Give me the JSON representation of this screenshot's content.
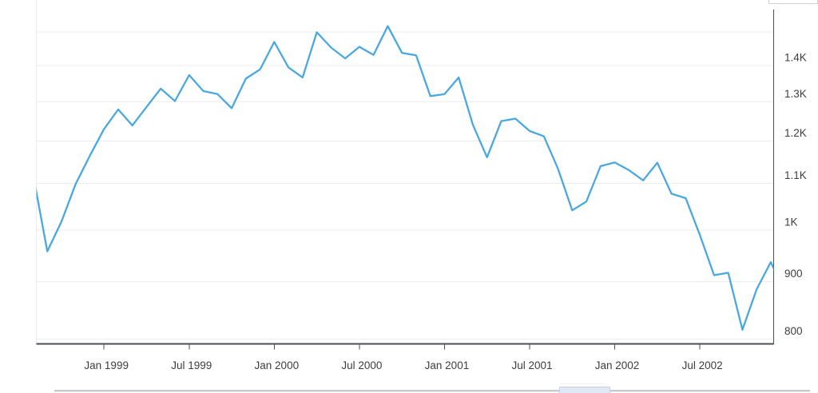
{
  "page": {
    "background": "#ffffff"
  },
  "chart_data": {
    "type": "line",
    "title": "",
    "legend_position": "none",
    "grid": true,
    "y_scale": "log",
    "y_axis_side": "right",
    "x_range_visible": [
      "Aug 1998",
      "Dec 2002"
    ],
    "line_color": "#4aa8e0",
    "axis_color": "#4c4f52",
    "grid_color": "#ededee",
    "label_color": "#3d3d3d",
    "x_tick_labels": [
      "Jan 1999",
      "Jul 1999",
      "Jan 2000",
      "Jul 2000",
      "Jan 2001",
      "Jul 2001",
      "Jan 2002",
      "Jul 2002"
    ],
    "y_tick_labels": [
      {
        "label": "1.4K",
        "value": 1400
      },
      {
        "label": "1.3K",
        "value": 1300
      },
      {
        "label": "1.2K",
        "value": 1200
      },
      {
        "label": "1.1K",
        "value": 1100
      },
      {
        "label": "1K",
        "value": 1000
      },
      {
        "label": "900",
        "value": 900
      },
      {
        "label": "800",
        "value": 800
      }
    ],
    "y_grid_values": [
      1500,
      1400,
      1300,
      1200,
      1100,
      1000,
      900,
      800
    ],
    "series": [
      {
        "name": "",
        "color": "#4aa8e0",
        "points": [
          {
            "date": "Jul 1998",
            "value": 1120.67
          },
          {
            "date": "Aug 1998",
            "value": 957.28
          },
          {
            "date": "Sep 1998",
            "value": 1017.01
          },
          {
            "date": "Oct 1998",
            "value": 1098.67
          },
          {
            "date": "Nov 1998",
            "value": 1163.63
          },
          {
            "date": "Dec 1998",
            "value": 1229.23
          },
          {
            "date": "Jan 1999",
            "value": 1279.64
          },
          {
            "date": "Feb 1999",
            "value": 1238.33
          },
          {
            "date": "Mar 1999",
            "value": 1286.37
          },
          {
            "date": "Apr 1999",
            "value": 1335.18
          },
          {
            "date": "May 1999",
            "value": 1301.84
          },
          {
            "date": "Jun 1999",
            "value": 1372.71
          },
          {
            "date": "Jul 1999",
            "value": 1328.72
          },
          {
            "date": "Aug 1999",
            "value": 1320.41
          },
          {
            "date": "Sep 1999",
            "value": 1282.71
          },
          {
            "date": "Oct 1999",
            "value": 1362.93
          },
          {
            "date": "Nov 1999",
            "value": 1388.91
          },
          {
            "date": "Dec 1999",
            "value": 1469.25
          },
          {
            "date": "Jan 2000",
            "value": 1394.46
          },
          {
            "date": "Feb 2000",
            "value": 1366.42
          },
          {
            "date": "Mar 2000",
            "value": 1498.58
          },
          {
            "date": "Apr 2000",
            "value": 1452.43
          },
          {
            "date": "May 2000",
            "value": 1420.6
          },
          {
            "date": "Jun 2000",
            "value": 1454.6
          },
          {
            "date": "Jul 2000",
            "value": 1430.83
          },
          {
            "date": "Aug 2000",
            "value": 1517.68
          },
          {
            "date": "Sep 2000",
            "value": 1436.51
          },
          {
            "date": "Oct 2000",
            "value": 1429.4
          },
          {
            "date": "Nov 2000",
            "value": 1314.95
          },
          {
            "date": "Dec 2000",
            "value": 1320.28
          },
          {
            "date": "Jan 2001",
            "value": 1366.01
          },
          {
            "date": "Feb 2001",
            "value": 1239.94
          },
          {
            "date": "Mar 2001",
            "value": 1160.33
          },
          {
            "date": "Apr 2001",
            "value": 1249.46
          },
          {
            "date": "May 2001",
            "value": 1255.82
          },
          {
            "date": "Jun 2001",
            "value": 1224.38
          },
          {
            "date": "Jul 2001",
            "value": 1211.23
          },
          {
            "date": "Aug 2001",
            "value": 1133.58
          },
          {
            "date": "Sep 2001",
            "value": 1040.94
          },
          {
            "date": "Oct 2001",
            "value": 1059.78
          },
          {
            "date": "Nov 2001",
            "value": 1139.45
          },
          {
            "date": "Dec 2001",
            "value": 1148.08
          },
          {
            "date": "Jan 2002",
            "value": 1130.2
          },
          {
            "date": "Feb 2002",
            "value": 1106.73
          },
          {
            "date": "Mar 2002",
            "value": 1147.39
          },
          {
            "date": "Apr 2002",
            "value": 1076.92
          },
          {
            "date": "May 2002",
            "value": 1067.14
          },
          {
            "date": "Jun 2002",
            "value": 989.82
          },
          {
            "date": "Jul 2002",
            "value": 911.62
          },
          {
            "date": "Aug 2002",
            "value": 916.07
          },
          {
            "date": "Sep 2002",
            "value": 815.28
          },
          {
            "date": "Oct 2002",
            "value": 885.76
          },
          {
            "date": "Nov 2002",
            "value": 936.31
          },
          {
            "date": "Dec 2002",
            "value": 879.82
          }
        ]
      }
    ]
  },
  "bottom_bar": {
    "track_color": "#c6cacf",
    "thumb_color": "#e0e9f5"
  }
}
